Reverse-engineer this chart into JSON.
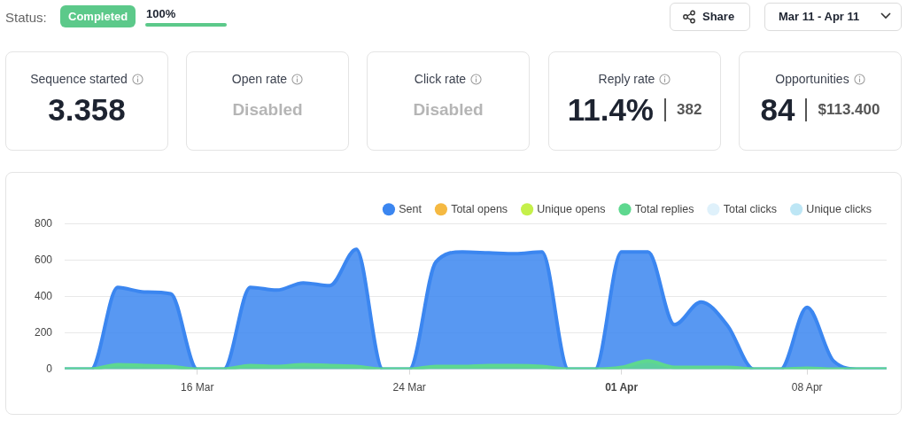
{
  "chart_data": [
    {
      "type": "other",
      "categories": [
        "Sequence started",
        "Open rate",
        "Click rate",
        "Reply rate",
        "Opportunities"
      ],
      "value_labels": [
        "3.358",
        null,
        null,
        "11.4%",
        "84"
      ],
      "annotations": [
        "Status:",
        "Completed",
        "100%",
        "Share",
        "Mar 11 - Apr 11",
        {
          "text": "Disabled",
          "x": "Open rate"
        },
        {
          "text": "Disabled",
          "x": "Click rate"
        },
        {
          "text": "382",
          "x": "Reply rate"
        },
        {
          "text": "$113.400",
          "x": "Opportunities"
        }
      ]
    },
    {
      "type": "area",
      "x": [
        "--03-11",
        "--03-12",
        "--03-13",
        "--03-14",
        "--03-15",
        "--03-16",
        "--03-17",
        "--03-18",
        "--03-19",
        "--03-20",
        "--03-21",
        "--03-22",
        "--03-23",
        "--03-24",
        "--03-25",
        "--03-26",
        "--03-27",
        "--03-28",
        "--03-29",
        "--03-30",
        "--03-31",
        "--04-01",
        "--04-02",
        "--04-03",
        "--04-04",
        "--04-05",
        "--04-06",
        "--04-07",
        "--04-08",
        "--04-09",
        "--04-10",
        "--04-11"
      ],
      "xlim": [
        "--03-11",
        "--04-11"
      ],
      "xticks": [
        {
          "value": "--03-16",
          "label": "16 Mar"
        },
        {
          "value": "--03-24",
          "label": "24 Mar"
        },
        {
          "value": "--04-01",
          "label": "01 Apr"
        },
        {
          "value": "--04-08",
          "label": "08 Apr"
        }
      ],
      "ylim": [
        0,
        800
      ],
      "yticks": [
        0,
        200,
        400,
        600,
        800
      ],
      "grid": "y",
      "legend": "top right",
      "marker": "none",
      "series": [
        {
          "name": "Sent",
          "color": "#3b86f0",
          "values": [
            0,
            0,
            450,
            425,
            415,
            0,
            0,
            450,
            435,
            475,
            460,
            660,
            0,
            0,
            590,
            645,
            640,
            635,
            645,
            0,
            0,
            645,
            645,
            245,
            370,
            240,
            0,
            0,
            340,
            45,
            0,
            0
          ]
        },
        {
          "name": "Total opens",
          "color": "#f5b942",
          "values": [
            null,
            null,
            null,
            null,
            null,
            null,
            null,
            null,
            null,
            null,
            null,
            null,
            null,
            null,
            null,
            null,
            null,
            null,
            null,
            null,
            null,
            null,
            null,
            null,
            null,
            null,
            null,
            null,
            null,
            null,
            null,
            null
          ]
        },
        {
          "name": "Unique opens",
          "color": "#c5f04a",
          "values": [
            null,
            null,
            null,
            null,
            null,
            null,
            null,
            null,
            null,
            null,
            null,
            null,
            null,
            null,
            null,
            null,
            null,
            null,
            null,
            null,
            null,
            null,
            null,
            null,
            null,
            null,
            null,
            null,
            null,
            null,
            null,
            null
          ]
        },
        {
          "name": "Total replies",
          "color": "#5ed88f",
          "values": [
            0,
            0,
            25,
            20,
            15,
            0,
            0,
            20,
            15,
            25,
            20,
            15,
            0,
            0,
            15,
            15,
            20,
            20,
            15,
            0,
            0,
            10,
            45,
            10,
            10,
            10,
            0,
            0,
            5,
            0,
            0,
            0
          ]
        },
        {
          "name": "Total clicks",
          "color": "#dff1fb",
          "values": [
            null,
            null,
            null,
            null,
            null,
            null,
            null,
            null,
            null,
            null,
            null,
            null,
            null,
            null,
            null,
            null,
            null,
            null,
            null,
            null,
            null,
            null,
            null,
            null,
            null,
            null,
            null,
            null,
            null,
            null,
            null,
            null
          ]
        },
        {
          "name": "Unique clicks",
          "color": "#bde6f5",
          "values": [
            null,
            null,
            null,
            null,
            null,
            null,
            null,
            null,
            null,
            null,
            null,
            null,
            null,
            null,
            null,
            null,
            null,
            null,
            null,
            null,
            null,
            null,
            null,
            null,
            null,
            null,
            null,
            null,
            null,
            null,
            null,
            null
          ]
        }
      ]
    }
  ]
}
